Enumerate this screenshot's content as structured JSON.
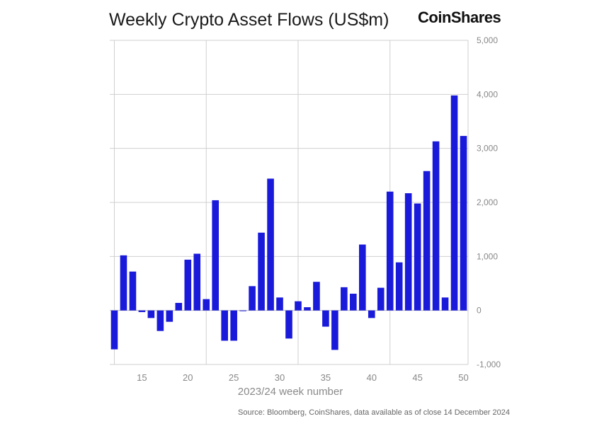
{
  "title": "Weekly Crypto Asset Flows (US$m)",
  "brand": "CoinShares",
  "source": "Source: Bloomberg, CoinShares, data available as of close 14 December 2024",
  "colors": {
    "bar": "#1a1adb",
    "grid": "#cfcfcf",
    "zero_line": "#bbbbbb"
  },
  "chart_data": {
    "type": "bar",
    "title": "Weekly Crypto Asset Flows (US$m)",
    "xlabel": "2023/24 week number",
    "ylabel": "",
    "ylim": [
      -1000,
      5000
    ],
    "xlim": [
      11.5,
      50.5
    ],
    "grid": true,
    "y_ticks": [
      5000,
      4000,
      3000,
      2000,
      1000,
      0,
      -1000
    ],
    "y_tick_labels": [
      "5,000",
      "4,000",
      "3,000",
      "2,000",
      "1,000",
      "0",
      "-1,000"
    ],
    "y_axis_side": "right",
    "x_ticks": [
      15,
      20,
      25,
      30,
      35,
      40,
      45,
      50
    ],
    "x_tick_labels": [
      "15",
      "20",
      "25",
      "30",
      "35",
      "40",
      "45",
      "50"
    ],
    "x_gridlines": [
      12,
      22,
      32,
      42
    ],
    "categories": [
      12,
      13,
      14,
      15,
      16,
      17,
      18,
      19,
      20,
      21,
      22,
      23,
      24,
      25,
      26,
      27,
      28,
      29,
      30,
      31,
      32,
      33,
      34,
      35,
      36,
      37,
      38,
      39,
      40,
      41,
      42,
      43,
      44,
      45,
      46,
      47,
      48,
      49,
      50
    ],
    "values": [
      -720,
      1020,
      720,
      -30,
      -140,
      -380,
      -210,
      140,
      940,
      1050,
      210,
      2040,
      -560,
      -560,
      -10,
      450,
      1440,
      2440,
      240,
      -520,
      170,
      60,
      530,
      -300,
      -730,
      430,
      310,
      1220,
      -140,
      420,
      2200,
      890,
      2170,
      1980,
      2580,
      3130,
      240,
      3980,
      3230
    ]
  }
}
